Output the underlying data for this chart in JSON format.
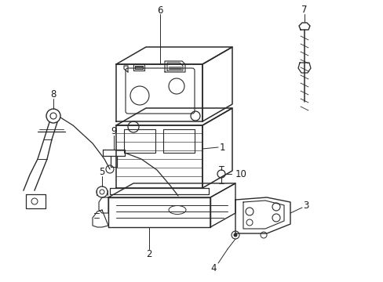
{
  "bg_color": "#ffffff",
  "line_color": "#2a2a2a",
  "label_color": "#1a1a1a",
  "label_fontsize": 8.5,
  "line_width": 1.0
}
